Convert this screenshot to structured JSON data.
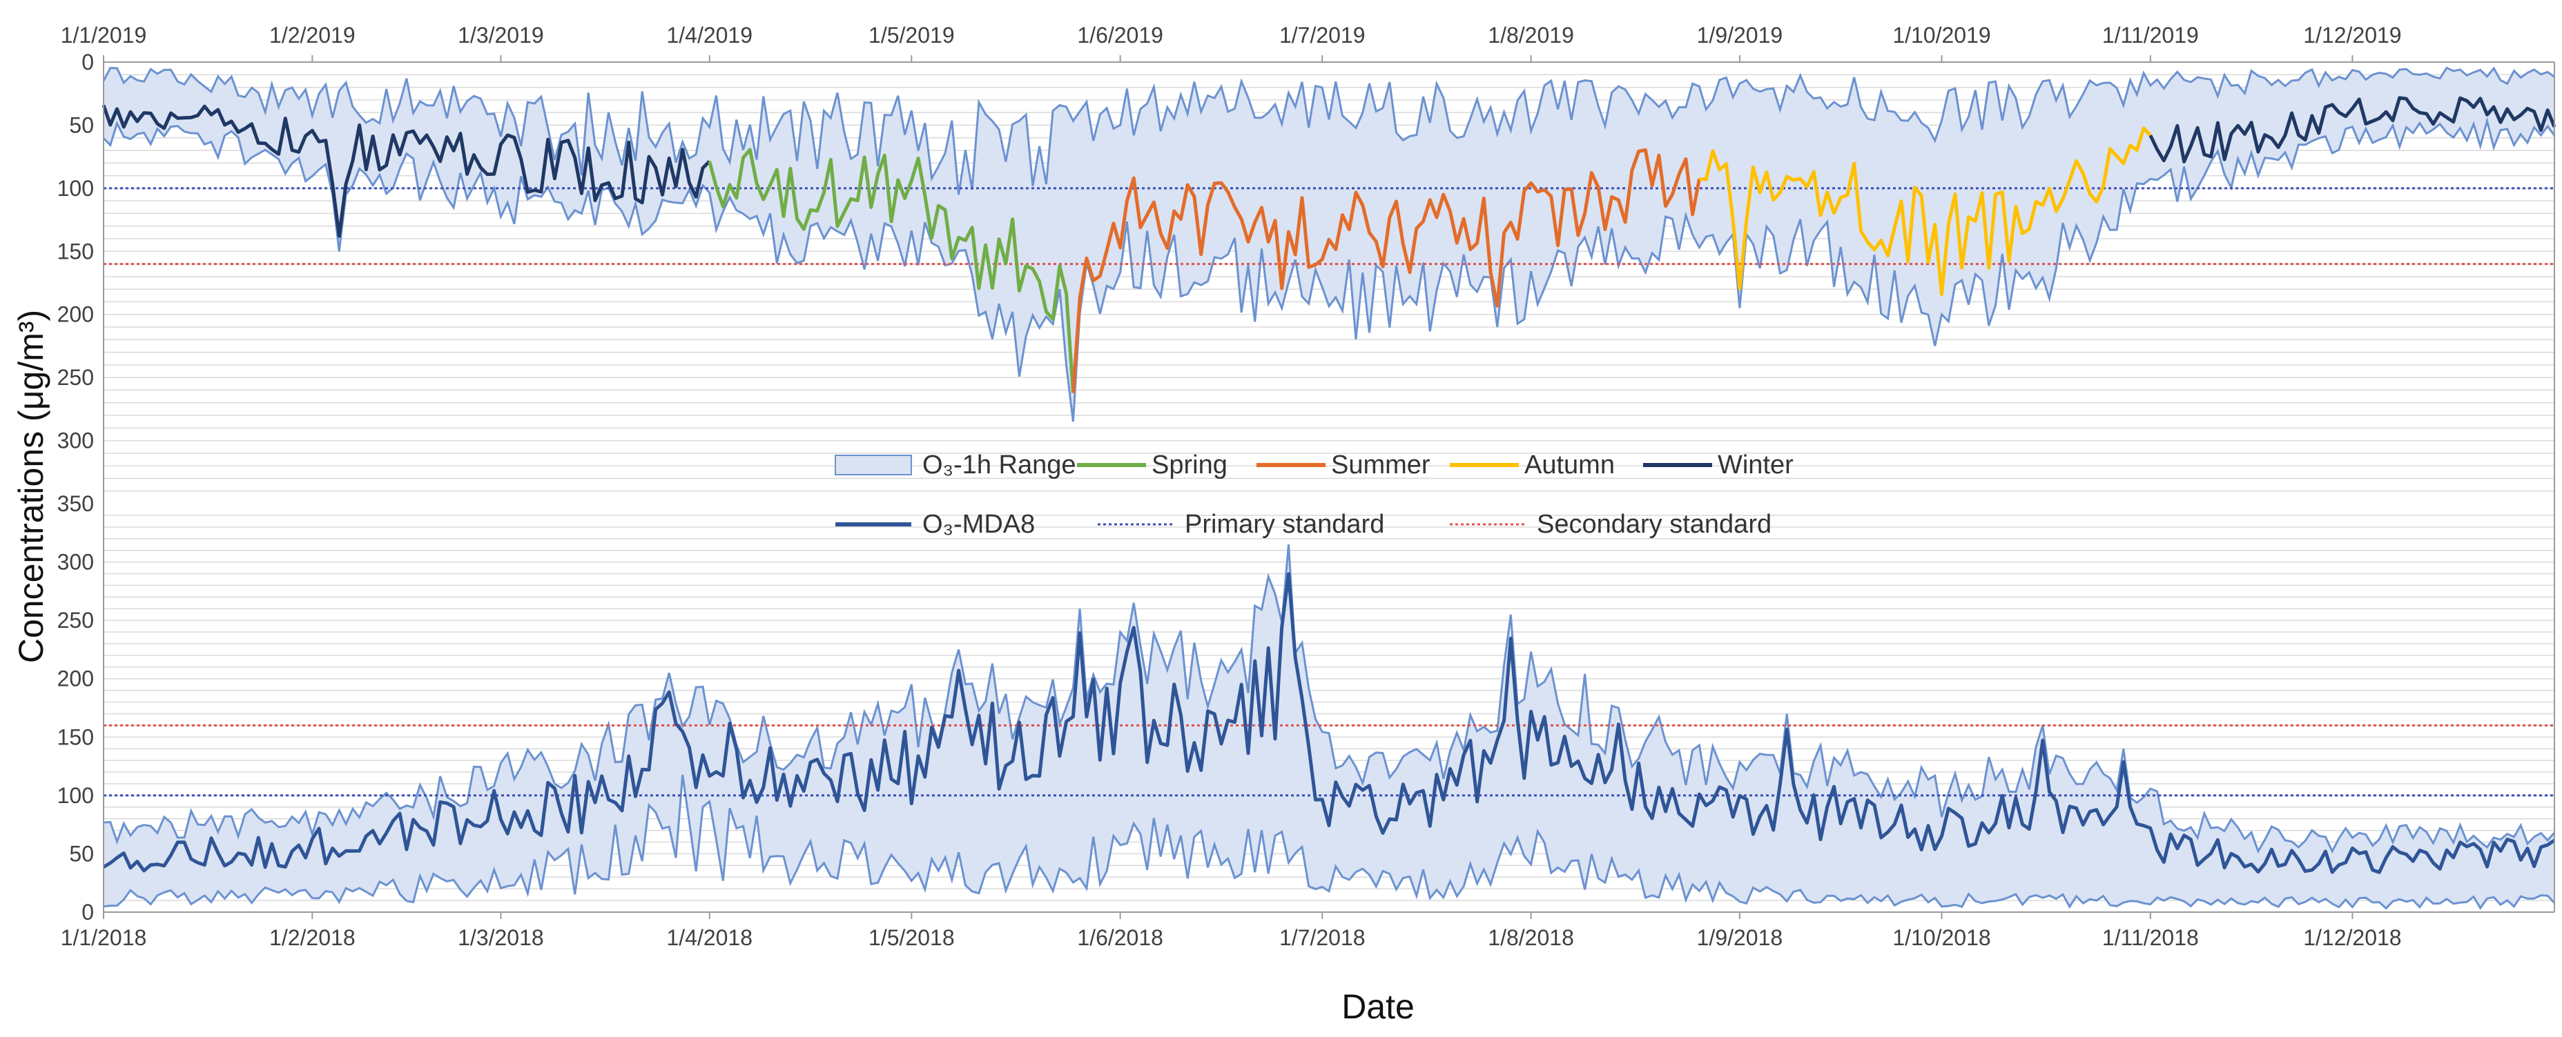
{
  "chart_data": {
    "type": "line",
    "xlabel": "Date",
    "ylabel": "Concentrations (μg/m³)",
    "ylabel_unit_sup": "3",
    "colors": {
      "range_fill": "#dae3f3",
      "range_edge": "#6b92d1",
      "mda8": "#2f5597",
      "spring": "#70ad47",
      "summer": "#e36c2a",
      "autumn": "#ffc000",
      "winter": "#1f3864",
      "primary": "#3b4db8",
      "secondary": "#e05050",
      "grid": "#d9d9d9"
    },
    "legend": {
      "range": "O₃-1h Range",
      "spring": "Spring",
      "summer": "Summer",
      "autumn": "Autumn",
      "winter": "Winter",
      "mda8": "O₃-MDA8",
      "primary": "Primary standard",
      "secondary": "Secondary standard"
    },
    "standards": {
      "primary": 100,
      "secondary": 160
    },
    "panels": [
      {
        "id": "2019",
        "axis_inverted": true,
        "ylim": [
          0,
          350
        ],
        "yticks": [
          0,
          50,
          100,
          150,
          200,
          250,
          300,
          350
        ],
        "xtick_labels": [
          "1/1/2019",
          "1/2/2019",
          "1/3/2019",
          "1/4/2019",
          "1/5/2019",
          "1/6/2019",
          "1/7/2019",
          "1/8/2019",
          "1/9/2019",
          "1/10/2019",
          "1/11/2019",
          "1/12/2019"
        ],
        "xtick_days": [
          0,
          31,
          59,
          90,
          120,
          151,
          181,
          212,
          243,
          273,
          304,
          334
        ],
        "anchors_day": [
          0,
          14,
          31,
          45,
          59,
          73,
          90,
          104,
          120,
          131,
          140,
          151,
          165,
          181,
          196,
          212,
          228,
          243,
          258,
          273,
          289,
          304,
          320,
          334,
          350,
          364
        ],
        "anchors_mda8": [
          40,
          42,
          65,
          68,
          78,
          88,
          88,
          105,
          100,
          140,
          180,
          115,
          120,
          130,
          135,
          130,
          95,
          95,
          105,
          150,
          110,
          70,
          60,
          40,
          38,
          45
        ],
        "anchors_min": [
          10,
          12,
          35,
          30,
          40,
          60,
          55,
          55,
          60,
          75,
          80,
          40,
          30,
          35,
          40,
          35,
          30,
          25,
          25,
          40,
          35,
          20,
          15,
          10,
          10,
          12
        ],
        "anchors_max": [
          55,
          58,
          80,
          85,
          105,
          110,
          110,
          140,
          130,
          180,
          220,
          145,
          160,
          175,
          180,
          175,
          135,
          130,
          150,
          185,
          150,
          95,
          75,
          55,
          52,
          60
        ],
        "seasons": [
          {
            "name": "winter",
            "start": 0,
            "end": 90
          },
          {
            "name": "spring",
            "start": 90,
            "end": 144
          },
          {
            "name": "summer",
            "start": 144,
            "end": 237
          },
          {
            "name": "autumn",
            "start": 237,
            "end": 304
          },
          {
            "name": "winter",
            "start": 304,
            "end": 364
          }
        ],
        "spikes": [
          {
            "day": 35,
            "value": 150
          },
          {
            "day": 130,
            "value": 195
          },
          {
            "day": 144,
            "value": 285
          },
          {
            "day": 175,
            "value": 195
          },
          {
            "day": 207,
            "value": 210
          },
          {
            "day": 243,
            "value": 195
          },
          {
            "day": 273,
            "value": 200
          },
          {
            "day": 290,
            "value": 128
          }
        ],
        "seed": 7
      },
      {
        "id": "2018",
        "axis_inverted": false,
        "ylim": [
          0,
          350
        ],
        "yticks": [
          0,
          50,
          100,
          150,
          200,
          250,
          300,
          350
        ],
        "xtick_labels": [
          "1/1/2018",
          "1/2/2018",
          "1/3/2018",
          "1/4/2018",
          "1/5/2018",
          "1/6/2018",
          "1/7/2018",
          "1/8/2018",
          "1/9/2018",
          "1/10/2018",
          "1/11/2018",
          "1/12/2018"
        ],
        "xtick_days": [
          0,
          31,
          59,
          90,
          120,
          151,
          181,
          212,
          243,
          273,
          304,
          334
        ],
        "anchors_day": [
          0,
          14,
          31,
          45,
          59,
          73,
          85,
          100,
          115,
          130,
          145,
          151,
          165,
          175,
          181,
          196,
          212,
          228,
          243,
          258,
          273,
          289,
          304,
          320,
          334,
          350,
          364
        ],
        "anchors_mda8": [
          45,
          50,
          55,
          70,
          85,
          95,
          150,
          110,
          120,
          140,
          150,
          180,
          155,
          210,
          100,
          90,
          150,
          105,
          80,
          85,
          70,
          95,
          60,
          45,
          45,
          50,
          50
        ],
        "anchors_min": [
          12,
          12,
          15,
          20,
          25,
          40,
          80,
          45,
          40,
          35,
          45,
          60,
          45,
          50,
          30,
          25,
          45,
          25,
          15,
          10,
          10,
          10,
          8,
          8,
          8,
          8,
          10
        ],
        "anchors_max": [
          65,
          70,
          75,
          90,
          110,
          120,
          180,
          130,
          150,
          170,
          180,
          220,
          190,
          250,
          130,
          120,
          190,
          140,
          110,
          120,
          95,
          130,
          85,
          60,
          60,
          60,
          60
        ],
        "seasons": [],
        "spikes": [
          {
            "day": 84,
            "value": 205
          },
          {
            "day": 127,
            "value": 225
          },
          {
            "day": 145,
            "value": 260
          },
          {
            "day": 153,
            "value": 265
          },
          {
            "day": 176,
            "value": 315
          },
          {
            "day": 209,
            "value": 255
          },
          {
            "day": 225,
            "value": 175
          },
          {
            "day": 250,
            "value": 170
          },
          {
            "day": 288,
            "value": 160
          },
          {
            "day": 300,
            "value": 140
          }
        ],
        "seed": 19
      }
    ]
  }
}
